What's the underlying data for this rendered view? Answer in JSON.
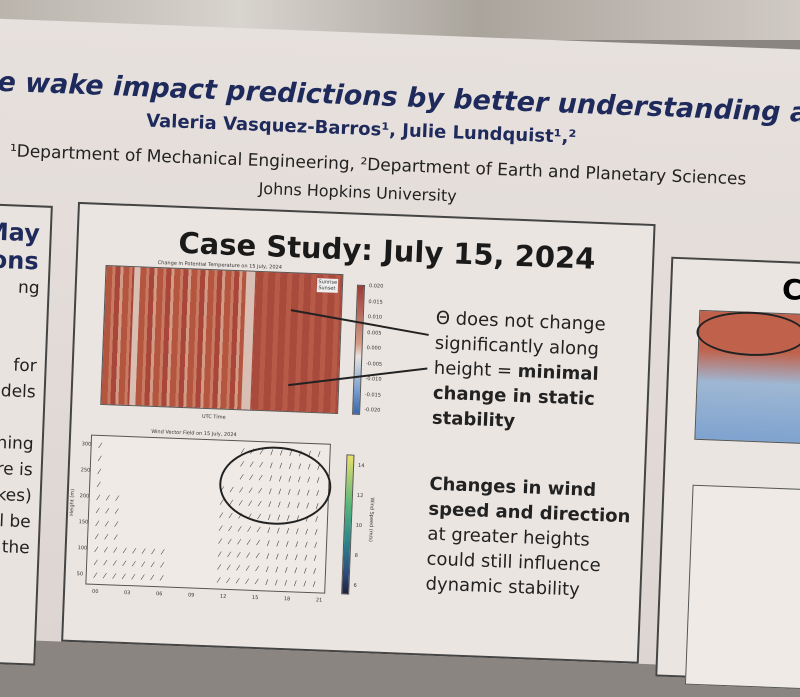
{
  "poster": {
    "title": "e wake impact predictions by better understanding atm",
    "authors": "Valeria Vasquez-Barros¹, Julie Lundquist¹,²",
    "departments": "¹Department of Mechanical Engineering, ²Department of Earth and Planetary Sciences",
    "university": "Johns Hopkins University"
  },
  "left_panel": {
    "heading": [
      "May",
      "ions"
    ],
    "lines": [
      "ng",
      "",
      "",
      "for",
      "odels",
      "",
      "hing",
      "ere is",
      "akes)",
      "ill be",
      "the"
    ]
  },
  "center_panel": {
    "heading": "Case Study: July 15, 2024",
    "heatmap_title": "Change in Potential Temperature on 15 July, 2024",
    "heatmap_xlabel": "UTC Time",
    "heatmap_legend": [
      "Sunrise",
      "Sunset"
    ],
    "heatmap_colorbar_ticks": [
      "0.020",
      "0.015",
      "0.010",
      "0.005",
      "0.000",
      "-0.005",
      "-0.010",
      "-0.015",
      "-0.020"
    ],
    "note1": [
      "Θ does not change",
      "significantly along",
      "height = ",
      "minimal",
      "change in static",
      "stability"
    ],
    "wind_title": "Wind Vector Field on 15 July, 2024",
    "wind_ylabel": "Height (m)",
    "wind_yticks": [
      "300",
      "250",
      "200",
      "150",
      "100",
      "50"
    ],
    "wind_xticks": [
      "00",
      "03",
      "06",
      "09",
      "12",
      "15",
      "18",
      "21"
    ],
    "wind_colorbar_label": "Wind Speed (m/s)",
    "wind_colorbar_ticks": [
      "14",
      "12",
      "10",
      "8",
      "6"
    ],
    "note2": [
      "Changes in wind",
      "speed and direction",
      "at greater heights",
      "could still influence",
      "dynamic stability"
    ]
  },
  "right_panel": {
    "heading": "C"
  }
}
